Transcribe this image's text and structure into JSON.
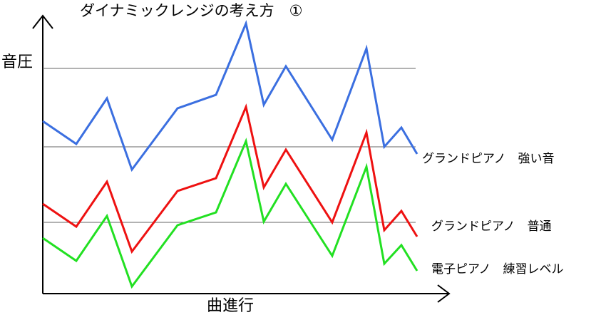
{
  "chart_data": {
    "type": "line",
    "title": "ダイナミックレンジの考え方　①",
    "y_label": "音圧",
    "x_label": "曲進行",
    "x": [
      0,
      47,
      90,
      125,
      189,
      243,
      285,
      310,
      341,
      406,
      454,
      479,
      503,
      525
    ],
    "xlim": [
      0,
      570
    ],
    "ylim": [
      0,
      390
    ],
    "gridlines": [
      316,
      206,
      100
    ],
    "series": [
      {
        "name": "グランドピアノ　強い音",
        "color": "#3b6fe0",
        "values": [
          242,
          210,
          274,
          174,
          260,
          279,
          379,
          265,
          319,
          216,
          344,
          206,
          233,
          196
        ]
      },
      {
        "name": "グランドピアノ　普通",
        "color": "#ee1111",
        "values": [
          126,
          94,
          157,
          59,
          144,
          162,
          262,
          149,
          202,
          100,
          226,
          89,
          116,
          80
        ]
      },
      {
        "name": "電子ピアノ　練習レベル",
        "color": "#22e022",
        "values": [
          78,
          46,
          109,
          10,
          96,
          114,
          214,
          101,
          154,
          53,
          178,
          42,
          68,
          32
        ]
      }
    ]
  }
}
